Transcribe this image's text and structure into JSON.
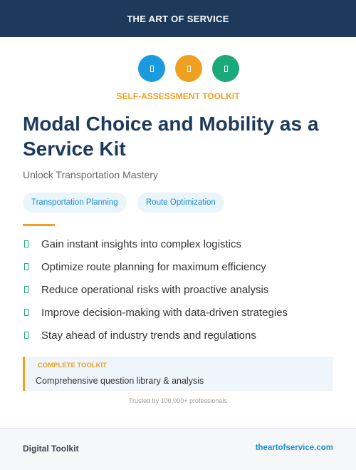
{
  "header": {
    "title": "THE ART OF SERVICE"
  },
  "badge": "SELF-ASSESSMENT TOOLKIT",
  "title": "Modal Choice and Mobility as a Service Kit",
  "subtitle": "Unlock Transportation Mastery",
  "tags": [
    "Transportation Planning",
    "Route Optimization"
  ],
  "bullets": [
    "Gain instant insights into complex logistics",
    "Optimize route planning for maximum efficiency",
    "Reduce operational risks with proactive analysis",
    "Improve decision-making with data-driven strategies",
    "Stay ahead of industry trends and regulations"
  ],
  "callout": {
    "label": "COMPLETE TOOLKIT",
    "text": "Comprehensive question library & analysis"
  },
  "trust": "Trusted by 100,000+ professionals",
  "footer": {
    "left": "Digital Toolkit",
    "right": "theartofservice.com"
  }
}
